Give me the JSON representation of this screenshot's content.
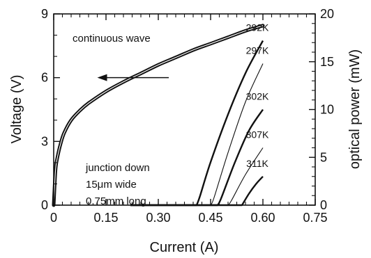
{
  "chart_data": {
    "type": "line",
    "title": "",
    "xlabel": "Current (A)",
    "ylabel": "Voltage (V)",
    "y2label": "optical power (mW)",
    "xlim": [
      0,
      0.75
    ],
    "ylim": [
      0,
      9
    ],
    "y2lim": [
      0,
      20
    ],
    "xticks": [
      "0",
      "0.15",
      "0.30",
      "0.45",
      "0.60",
      "0.75"
    ],
    "yticks": [
      "0",
      "3",
      "6",
      "9"
    ],
    "y2ticks": [
      "0",
      "5",
      "10",
      "15",
      "20"
    ],
    "grid": false,
    "annotations": {
      "mode": "continuous wave",
      "device": [
        "junction down",
        "15μm wide",
        "0.75mm long"
      ],
      "arrow_direction": "left"
    },
    "voltage_series": {
      "axis": "left",
      "x": [
        0,
        0.005,
        0.01,
        0.02,
        0.03,
        0.05,
        0.075,
        0.1,
        0.15,
        0.2,
        0.25,
        0.3,
        0.35,
        0.4,
        0.45,
        0.5,
        0.55,
        0.6
      ],
      "y": [
        0,
        1.6,
        2.2,
        2.9,
        3.4,
        4.0,
        4.45,
        4.8,
        5.35,
        5.8,
        6.2,
        6.6,
        6.95,
        7.3,
        7.6,
        7.9,
        8.2,
        8.45
      ]
    },
    "power_series": [
      {
        "name": "292K",
        "axis": "right",
        "x": [
          0.41,
          0.42,
          0.45,
          0.5,
          0.55,
          0.6
        ],
        "y": [
          0,
          1.0,
          4.5,
          9.5,
          13.8,
          17.2
        ]
      },
      {
        "name": "297K",
        "axis": "right",
        "x": [
          0.45,
          0.46,
          0.5,
          0.55,
          0.6
        ],
        "y": [
          0,
          0.8,
          5.5,
          10.8,
          14.8
        ]
      },
      {
        "name": "302K",
        "axis": "right",
        "x": [
          0.47,
          0.48,
          0.52,
          0.56,
          0.6
        ],
        "y": [
          0,
          0.7,
          4.5,
          7.8,
          10.0
        ]
      },
      {
        "name": "307K",
        "axis": "right",
        "x": [
          0.5,
          0.51,
          0.55,
          0.6
        ],
        "y": [
          0,
          0.5,
          3.2,
          6.0
        ]
      },
      {
        "name": "311K",
        "axis": "right",
        "x": [
          0.54,
          0.56,
          0.58,
          0.6
        ],
        "y": [
          0,
          1.2,
          2.2,
          3.0
        ]
      }
    ]
  }
}
